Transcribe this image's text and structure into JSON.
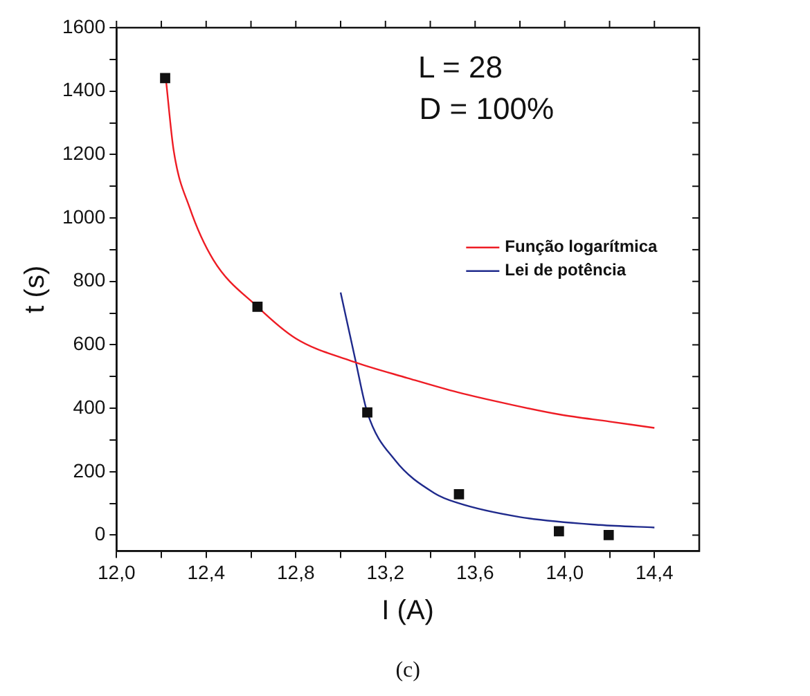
{
  "chart_data": {
    "type": "scatter",
    "xlabel": "I (A)",
    "ylabel": "t (s)",
    "annotations": [
      "L = 28",
      "D = 100%",
      "(c)"
    ],
    "xlim": [
      12.0,
      14.6
    ],
    "xticks": [
      {
        "value": 12.0,
        "label": "12,0"
      },
      {
        "value": 12.2,
        "label": null
      },
      {
        "value": 12.4,
        "label": "12,4"
      },
      {
        "value": 12.6,
        "label": null
      },
      {
        "value": 12.8,
        "label": "12,8"
      },
      {
        "value": 13.0,
        "label": null
      },
      {
        "value": 13.2,
        "label": "13,2"
      },
      {
        "value": 13.4,
        "label": null
      },
      {
        "value": 13.6,
        "label": "13,6"
      },
      {
        "value": 13.8,
        "label": null
      },
      {
        "value": 14.0,
        "label": "14,0"
      },
      {
        "value": 14.2,
        "label": null
      },
      {
        "value": 14.4,
        "label": "14,4"
      }
    ],
    "ylim": [
      -50,
      1600
    ],
    "yticks": [
      0,
      {
        "value": 100,
        "label": null
      },
      200,
      {
        "value": 300,
        "label": null
      },
      400,
      {
        "value": 500,
        "label": null
      },
      600,
      {
        "value": 700,
        "label": null
      },
      800,
      {
        "value": 900,
        "label": null
      },
      1000,
      {
        "value": 1100,
        "label": null
      },
      1200,
      {
        "value": 1300,
        "label": null
      },
      1400,
      {
        "value": 1500,
        "label": null
      },
      1600
    ],
    "grid": false,
    "legend": "right",
    "series": [
      {
        "type": "scatter",
        "color": "#111111",
        "marker": "square",
        "x": [
          12.217,
          12.629,
          13.119,
          13.528,
          13.974,
          14.196
        ],
        "values": [
          1441,
          720,
          387,
          129,
          12,
          0
        ]
      },
      {
        "type": "line",
        "name": "Função logarítmica",
        "color": "#ee1c24",
        "marker": "none",
        "line_style": "solid",
        "x": [
          12.22,
          12.255,
          12.326,
          12.432,
          12.629,
          12.8,
          13.048,
          13.3,
          13.524,
          13.75,
          13.98,
          14.2,
          14.4
        ],
        "values": [
          1440,
          1213,
          1033,
          868,
          720,
          620,
          549,
          495,
          450,
          413,
          380,
          358,
          338
        ]
      },
      {
        "type": "line",
        "name": "Lei de potência",
        "color": "#1f2a8c",
        "marker": "none",
        "line_style": "solid",
        "x": [
          13.0,
          13.066,
          13.119,
          13.242,
          13.419,
          13.52,
          13.8,
          14.157,
          14.4
        ],
        "values": [
          765,
          552,
          387,
          237,
          132,
          102,
          57,
          32,
          24
        ]
      }
    ]
  }
}
